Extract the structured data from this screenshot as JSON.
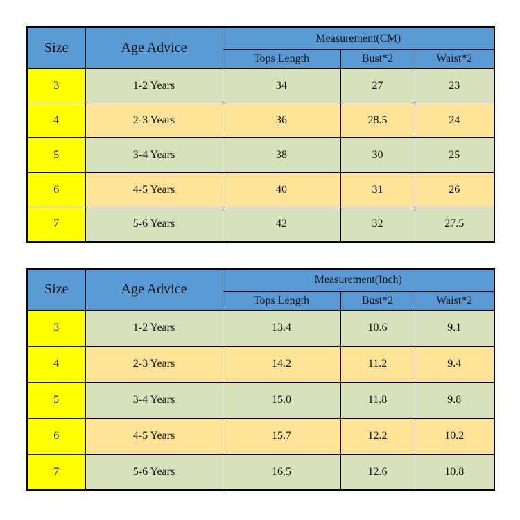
{
  "colors": {
    "header_blue": "#5b9bd5",
    "size_yellow": "#ffff00",
    "row_green": "#d7e2bc",
    "row_tan": "#fce398",
    "border_black": "#000000",
    "background_white": "#ffffff"
  },
  "tables": [
    {
      "unit_label": "Measurement(CM)",
      "headers": {
        "size": "Size",
        "age": "Age Advice",
        "cols": [
          "Tops Length",
          "Bust*2",
          "Waist*2"
        ]
      },
      "rows": [
        {
          "size": "3",
          "age": "1-2 Years",
          "tops_length": "34",
          "bust": "27",
          "waist": "23"
        },
        {
          "size": "4",
          "age": "2-3 Years",
          "tops_length": "36",
          "bust": "28.5",
          "waist": "24"
        },
        {
          "size": "5",
          "age": "3-4 Years",
          "tops_length": "38",
          "bust": "30",
          "waist": "25"
        },
        {
          "size": "6",
          "age": "4-5 Years",
          "tops_length": "40",
          "bust": "31",
          "waist": "26"
        },
        {
          "size": "7",
          "age": "5-6 Years",
          "tops_length": "42",
          "bust": "32",
          "waist": "27.5"
        }
      ]
    },
    {
      "unit_label": "Measurement(Inch)",
      "headers": {
        "size": "Size",
        "age": "Age Advice",
        "cols": [
          "Tops Length",
          "Bust*2",
          "Waist*2"
        ]
      },
      "rows": [
        {
          "size": "3",
          "age": "1-2 Years",
          "tops_length": "13.4",
          "bust": "10.6",
          "waist": "9.1"
        },
        {
          "size": "4",
          "age": "2-3 Years",
          "tops_length": "14.2",
          "bust": "11.2",
          "waist": "9.4"
        },
        {
          "size": "5",
          "age": "3-4 Years",
          "tops_length": "15.0",
          "bust": "11.8",
          "waist": "9.8"
        },
        {
          "size": "6",
          "age": "4-5 Years",
          "tops_length": "15.7",
          "bust": "12.2",
          "waist": "10.2"
        },
        {
          "size": "7",
          "age": "5-6 Years",
          "tops_length": "16.5",
          "bust": "12.6",
          "waist": "10.8"
        }
      ]
    }
  ]
}
